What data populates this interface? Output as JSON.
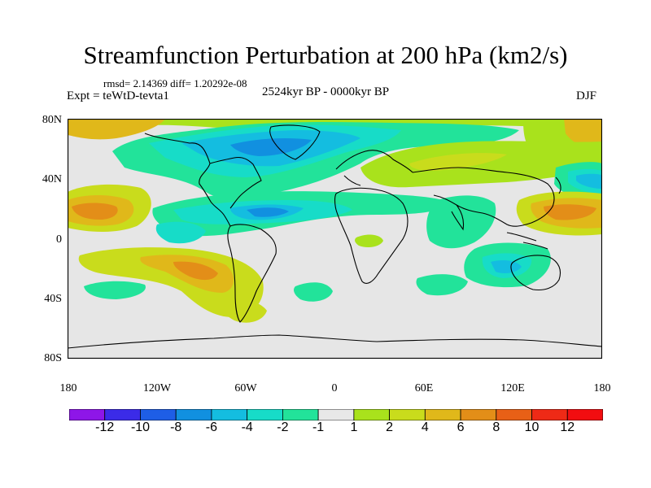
{
  "title": "Streamfunction Perturbation at 200 hPa (km2/s)",
  "stats": "rmsd= 2.14369 diff= 1.20292e-08",
  "experiment": "Expt = teWtD-tevta1",
  "period": "2524kyr BP - 0000kyr BP",
  "season": "DJF",
  "lat_labels": [
    "80N",
    "40N",
    "0",
    "40S",
    "80S"
  ],
  "lon_labels": [
    "180",
    "120W",
    "60W",
    "0",
    "60E",
    "120E",
    "180"
  ],
  "colorbar": {
    "labels": [
      "-12",
      "-10",
      "-8",
      "-6",
      "-4",
      "-2",
      "-1",
      "1",
      "2",
      "4",
      "6",
      "8",
      "10",
      "12"
    ],
    "colors": [
      "#8e16e8",
      "#3b2be8",
      "#1e5ee6",
      "#1190e0",
      "#14bde0",
      "#17dcc8",
      "#22e39a",
      "#e8e8e8",
      "#a9e21c",
      "#c9dc1c",
      "#e0b81a",
      "#e38e18",
      "#e86016",
      "#ee2a16",
      "#f20d10"
    ]
  },
  "neutral_color": "#e6e6e6"
}
